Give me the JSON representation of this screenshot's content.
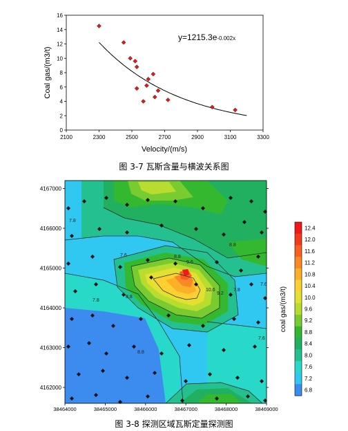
{
  "figure1": {
    "caption": "图 3-7   瓦斯含量与横波关系图",
    "equation": "y=1215.3e",
    "equation_exp": "-0.002x",
    "chart_data": {
      "type": "scatter",
      "xlabel": "Velocity/(m/s)",
      "ylabel": "Coal gas/(m3/t)",
      "xlim": [
        2100,
        3300
      ],
      "ylim": [
        0,
        16
      ],
      "xticks": [
        "2100",
        "2300",
        "2500",
        "2700",
        "2900",
        "3100",
        "3300"
      ],
      "yticks": [
        "0",
        "2",
        "4",
        "6",
        "8",
        "10",
        "12",
        "14",
        "16"
      ],
      "points": [
        {
          "x": 2300,
          "y": 14.5
        },
        {
          "x": 2450,
          "y": 12.2
        },
        {
          "x": 2490,
          "y": 10.0
        },
        {
          "x": 2520,
          "y": 9.6
        },
        {
          "x": 2530,
          "y": 8.8
        },
        {
          "x": 2530,
          "y": 5.8
        },
        {
          "x": 2570,
          "y": 4.0
        },
        {
          "x": 2590,
          "y": 6.2
        },
        {
          "x": 2600,
          "y": 7.1
        },
        {
          "x": 2630,
          "y": 7.8
        },
        {
          "x": 2660,
          "y": 5.5
        },
        {
          "x": 2640,
          "y": 4.6
        },
        {
          "x": 2720,
          "y": 4.2
        },
        {
          "x": 2990,
          "y": 3.2
        },
        {
          "x": 3130,
          "y": 2.8
        }
      ],
      "fit": {
        "a": 1215.3,
        "b": -0.002,
        "x_from": 2300,
        "x_to": 3200
      }
    }
  },
  "figure2": {
    "caption": "图 3-8   探测区域瓦斯定量探测图",
    "colorbar_label": "coal gas/(m3/t)",
    "chart_data": {
      "type": "heatmap",
      "xlim": [
        38464000,
        38469000
      ],
      "ylim": [
        4161600,
        4167200
      ],
      "xticks": [
        "38464000",
        "38465000",
        "38466000",
        "38467000",
        "38468000",
        "38469000"
      ],
      "yticks": [
        "4162000",
        "4163000",
        "4164000",
        "4165000",
        "4166000",
        "4167000"
      ],
      "levels": [
        "12.4",
        "12.0",
        "11.6",
        "11.2",
        "10.8",
        "10.4",
        "10.0",
        "9.6",
        "9.2",
        "8.8",
        "8.4",
        "8.0",
        "7.6",
        "7.2",
        "6.8"
      ],
      "level_colors": [
        "#f01818",
        "#f43a1c",
        "#f86020",
        "#fa8824",
        "#fcb028",
        "#fcd030",
        "#e4e030",
        "#b8dc30",
        "#78cc30",
        "#34b830",
        "#20b060",
        "#24c090",
        "#28d8c8",
        "#30c8f0",
        "#3c8cf0"
      ],
      "contour_labels": [
        "7.8",
        "7.6",
        "8.8",
        "8.8",
        "7.8",
        "7.6",
        "9.6",
        "8.8",
        "10.6",
        "9.2",
        "8.8",
        "7.6",
        "7.8"
      ]
    }
  }
}
